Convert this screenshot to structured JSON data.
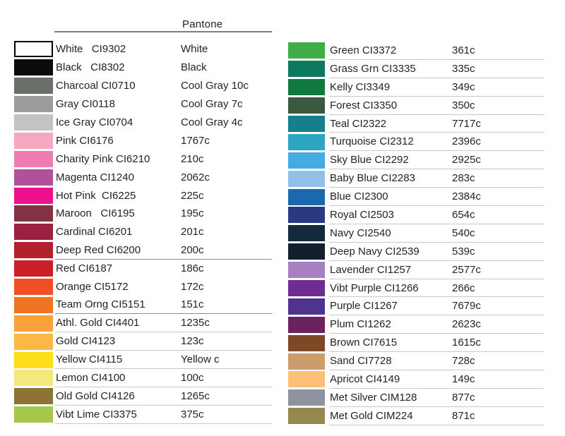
{
  "header": {
    "pantone_label": "Pantone"
  },
  "columns": [
    {
      "rows": [
        {
          "color": "#ffffff",
          "border": true,
          "label": "White   CI9302",
          "pantone": "White",
          "rule": null
        },
        {
          "color": "#0c0c0c",
          "border": false,
          "label": "Black   CI8302",
          "pantone": "Black",
          "rule": null
        },
        {
          "color": "#687069",
          "border": false,
          "label": "Charcoal CI0710",
          "pantone": "Cool Gray 10c",
          "rule": null
        },
        {
          "color": "#9a9c9e",
          "border": false,
          "label": "Gray CI0118",
          "pantone": "Cool Gray 7c",
          "rule": null
        },
        {
          "color": "#c2c3c5",
          "border": false,
          "label": "Ice Gray CI0704",
          "pantone": "Cool Gray 4c",
          "rule": null
        },
        {
          "color": "#f5a8c0",
          "border": false,
          "label": "Pink CI6176",
          "pantone": "1767c",
          "rule": null
        },
        {
          "color": "#ee7db1",
          "border": false,
          "label": "Charity Pink CI6210",
          "pantone": "210c",
          "rule": null
        },
        {
          "color": "#b0519c",
          "border": false,
          "label": "Magenta CI1240",
          "pantone": "2062c",
          "rule": null
        },
        {
          "color": "#ee118f",
          "border": false,
          "label": "Hot Pink  CI6225",
          "pantone": "225c",
          "rule": null
        },
        {
          "color": "#833243",
          "border": false,
          "label": "Maroon   CI6195",
          "pantone": "195c",
          "rule": null
        },
        {
          "color": "#9c2040",
          "border": false,
          "label": "Cardinal CI6201",
          "pantone": "201c",
          "rule": null
        },
        {
          "color": "#b2202b",
          "border": false,
          "label": "Deep Red CI6200",
          "pantone": "200c",
          "rule": "dark"
        },
        {
          "color": "#cb2026",
          "border": false,
          "label": "Red CI6187",
          "pantone": "186c",
          "rule": null
        },
        {
          "color": "#f04f25",
          "border": false,
          "label": "Orange CI5172",
          "pantone": "172c",
          "rule": null
        },
        {
          "color": "#ec7423",
          "border": false,
          "label": "Team Orng CI5151",
          "pantone": "151c",
          "rule": "dark"
        },
        {
          "color": "#f8a23a",
          "border": false,
          "label": "Athl. Gold CI4401",
          "pantone": "1235c",
          "rule": "light"
        },
        {
          "color": "#fbb846",
          "border": false,
          "label": "Gold CI4123",
          "pantone": "123c",
          "rule": "light"
        },
        {
          "color": "#fede19",
          "border": false,
          "label": "Yellow CI4115",
          "pantone": "Yellow c",
          "rule": "light"
        },
        {
          "color": "#f1e97c",
          "border": false,
          "label": "Lemon CI4100",
          "pantone": "100c",
          "rule": "light"
        },
        {
          "color": "#8e7336",
          "border": false,
          "label": "Old Gold CI4126",
          "pantone": "1265c",
          "rule": "light"
        },
        {
          "color": "#a5c84c",
          "border": false,
          "label": "Vibt Lime CI3375",
          "pantone": "375c",
          "rule": "light"
        }
      ]
    },
    {
      "rows": [
        {
          "color": "#40ad49",
          "border": false,
          "label": "Green CI3372",
          "pantone": "361c",
          "rule": "light"
        },
        {
          "color": "#0c7b5d",
          "border": false,
          "label": "Grass Grn CI3335",
          "pantone": "335c",
          "rule": "light"
        },
        {
          "color": "#11793d",
          "border": false,
          "label": "Kelly CI3349",
          "pantone": "349c",
          "rule": "light"
        },
        {
          "color": "#3b5941",
          "border": false,
          "label": "Forest CI3350",
          "pantone": "350c",
          "rule": "light"
        },
        {
          "color": "#15808c",
          "border": false,
          "label": "Teal CI2322",
          "pantone": "7717c",
          "rule": "light"
        },
        {
          "color": "#2ca6c2",
          "border": false,
          "label": "Turquoise CI2312",
          "pantone": "2396c",
          "rule": "light"
        },
        {
          "color": "#45abe0",
          "border": false,
          "label": "Sky Blue CI2292",
          "pantone": "2925c",
          "rule": "light"
        },
        {
          "color": "#93c0e8",
          "border": false,
          "label": "Baby Blue CI2283",
          "pantone": "283c",
          "rule": "light"
        },
        {
          "color": "#1a69ae",
          "border": false,
          "label": "Blue CI2300",
          "pantone": "2384c",
          "rule": "light"
        },
        {
          "color": "#2a3a82",
          "border": false,
          "label": "Royal CI2503",
          "pantone": "654c",
          "rule": "light"
        },
        {
          "color": "#14293c",
          "border": false,
          "label": "Navy CI2540",
          "pantone": "540c",
          "rule": "light"
        },
        {
          "color": "#131f2d",
          "border": false,
          "label": "Deep Navy CI2539",
          "pantone": "539c",
          "rule": "light"
        },
        {
          "color": "#a87fc3",
          "border": false,
          "label": "Lavender CI1257",
          "pantone": "2577c",
          "rule": "light"
        },
        {
          "color": "#6e2d90",
          "border": false,
          "label": "Vibt Purple CI1266",
          "pantone": "266c",
          "rule": "light"
        },
        {
          "color": "#4e348e",
          "border": false,
          "label": "Purple CI1267",
          "pantone": "7679c",
          "rule": "light"
        },
        {
          "color": "#6c2260",
          "border": false,
          "label": "Plum CI1262",
          "pantone": "2623c",
          "rule": "light"
        },
        {
          "color": "#7d4827",
          "border": false,
          "label": "Brown CI7615",
          "pantone": "1615c",
          "rule": "light"
        },
        {
          "color": "#cd9c6c",
          "border": false,
          "label": "Sand CI7728",
          "pantone": "728c",
          "rule": "light"
        },
        {
          "color": "#fcc07a",
          "border": false,
          "label": "Apricot CI4149",
          "pantone": "149c",
          "rule": "light"
        },
        {
          "color": "#8d94a0",
          "border": false,
          "label": "Met Silver CIM128",
          "pantone": "877c",
          "rule": "light"
        },
        {
          "color": "#968851",
          "border": false,
          "label": "Met Gold CIM224",
          "pantone": "871c",
          "rule": "light"
        }
      ]
    }
  ]
}
